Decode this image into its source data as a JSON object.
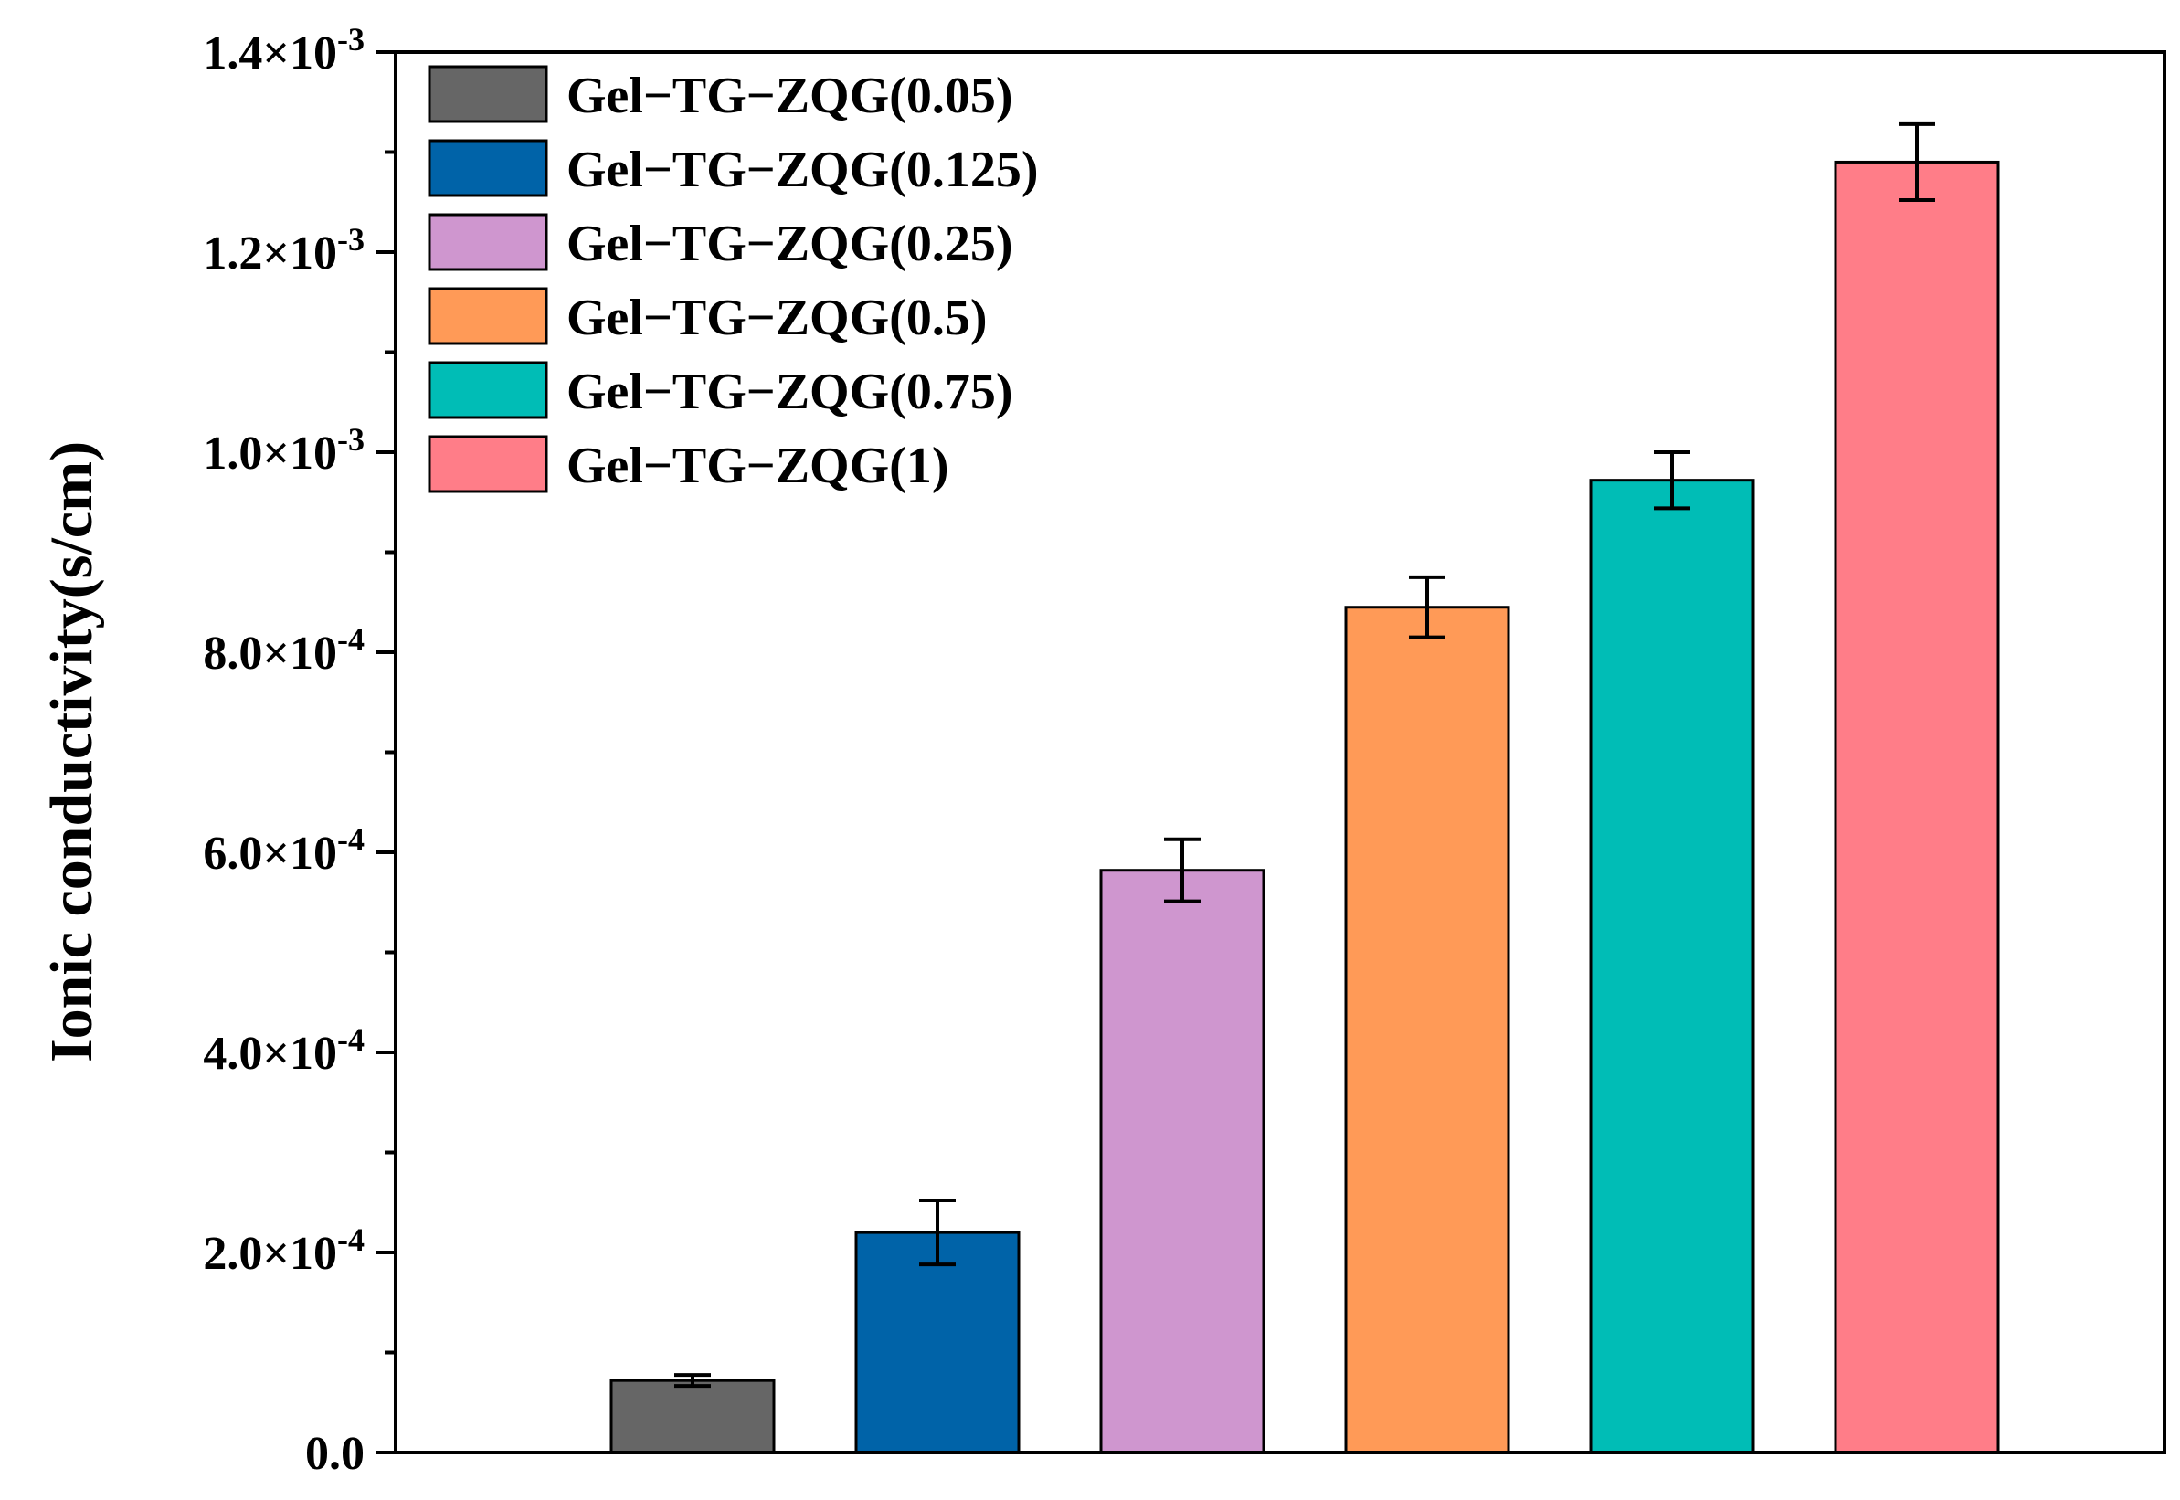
{
  "chart_data": {
    "type": "bar",
    "title": "",
    "xlabel": "",
    "ylabel": "Ionic conductivity(s/cm)",
    "ylim": [
      0,
      0.0014
    ],
    "y_ticks": [
      {
        "value": 0,
        "label": "0.0",
        "mantissa": "",
        "exponent": ""
      },
      {
        "value": 0.0002,
        "label": "2.0×10-4",
        "mantissa": "2.0×10",
        "exponent": "-4"
      },
      {
        "value": 0.0004,
        "label": "4.0×10-4",
        "mantissa": "4.0×10",
        "exponent": "-4"
      },
      {
        "value": 0.0006,
        "label": "6.0×10-4",
        "mantissa": "6.0×10",
        "exponent": "-4"
      },
      {
        "value": 0.0008,
        "label": "8.0×10-4",
        "mantissa": "8.0×10",
        "exponent": "-4"
      },
      {
        "value": 0.001,
        "label": "1.0×10-3",
        "mantissa": "1.0×10",
        "exponent": "-3"
      },
      {
        "value": 0.0012,
        "label": "1.2×10-3",
        "mantissa": "1.2×10",
        "exponent": "-3"
      },
      {
        "value": 0.0014,
        "label": "1.4×10-3",
        "mantissa": "1.4×10",
        "exponent": "-3"
      }
    ],
    "grid": false,
    "legend_position": "top-left",
    "categories": [
      "Gel−TG−ZQG(0.05)",
      "Gel−TG−ZQG(0.125)",
      "Gel−TG−ZQG(0.25)",
      "Gel−TG−ZQG(0.5)",
      "Gel−TG−ZQG(0.75)",
      "Gel−TG−ZQG(1)"
    ],
    "values": [
      7.2e-05,
      0.00022,
      0.000582,
      0.000845,
      0.000972,
      0.00129
    ],
    "errors": [
      5.5e-06,
      3.2e-05,
      3.1e-05,
      3e-05,
      2.8e-05,
      3.8e-05
    ],
    "colors": [
      "#666666",
      "#0063a8",
      "#cf96cf",
      "#ff9a57",
      "#00bdb6",
      "#ff7d88"
    ]
  }
}
